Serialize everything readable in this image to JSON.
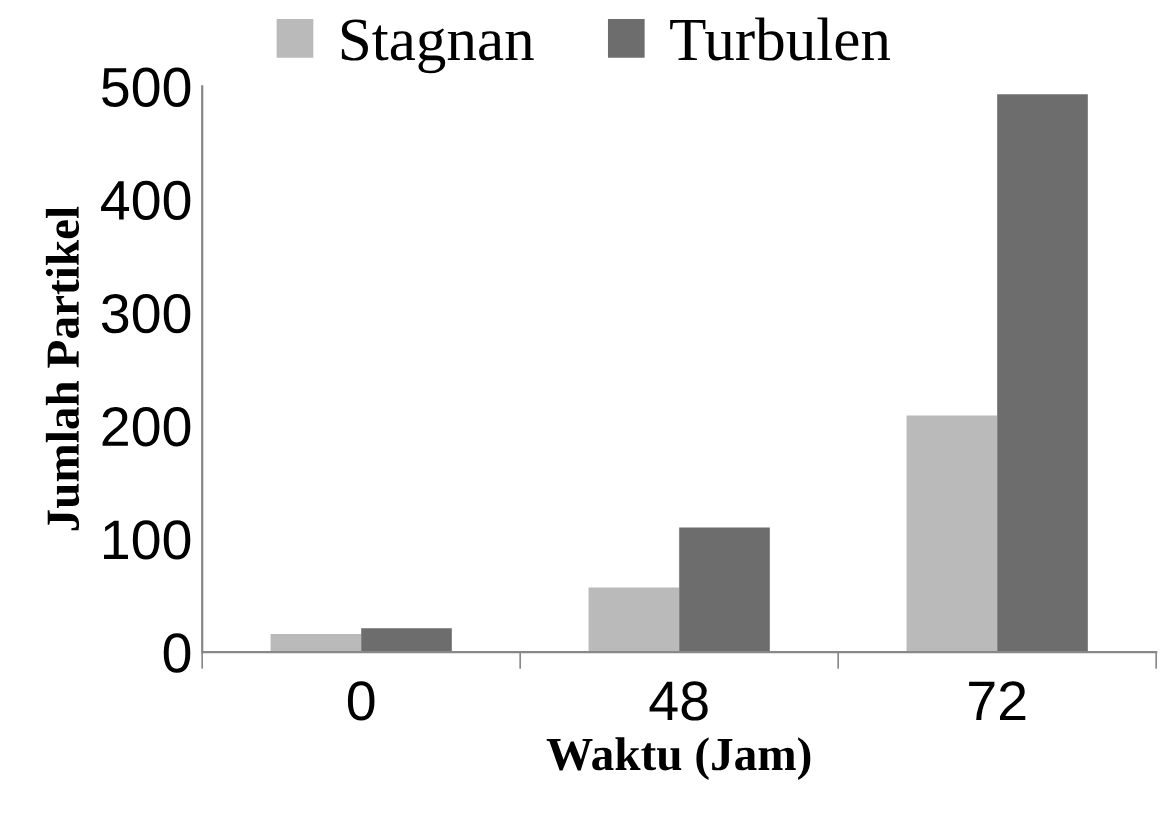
{
  "chart_data": {
    "type": "bar",
    "xlabel": "Waktu (Jam)",
    "ylabel": "Jumlah Partikel",
    "categories": [
      "0",
      "48",
      "72"
    ],
    "series": [
      {
        "name": "Stagnan",
        "color": "#bababa",
        "values": [
          16,
          57,
          209
        ]
      },
      {
        "name": "Turbulen",
        "color": "#6d6d6d",
        "values": [
          21,
          110,
          493
        ]
      }
    ],
    "ylim": [
      0,
      500
    ],
    "yticks": [
      0,
      100,
      200,
      300,
      400,
      500
    ],
    "grid": false,
    "legend": "top"
  }
}
